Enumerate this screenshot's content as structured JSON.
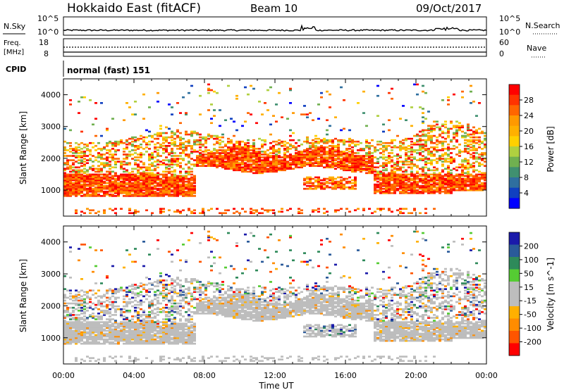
{
  "header": {
    "title": "Hokkaido East (fitACF)",
    "beam": "Beam 10",
    "date": "09/Oct/2017"
  },
  "panels": {
    "nsky_label": "N.Sky",
    "nsearch_label": "N.Search",
    "nsky_ticks": [
      "10^5",
      "10^0"
    ],
    "nsearch_ticks": [
      "10^5",
      "10^0"
    ],
    "freq_label_line1": "Freq.",
    "freq_label_line2": "[MHz]",
    "freq_ticks": [
      "18",
      "8"
    ],
    "nave_label": "Nave",
    "nave_ticks": [
      "60",
      "0"
    ],
    "cpid_label": "CPID",
    "cpid_text": "normal (fast) 151"
  },
  "colorbars": {
    "power": {
      "label": "Power [dB]",
      "ticks": [
        "28",
        "24",
        "20",
        "16",
        "12",
        "8",
        "4"
      ],
      "colors": [
        "#ff0000",
        "#ff3300",
        "#ff6600",
        "#ff9900",
        "#ffb000",
        "#ffd000",
        "#b0d040",
        "#70b050",
        "#409070",
        "#2f6f9f",
        "#1040c0",
        "#0000ff"
      ]
    },
    "velocity": {
      "label": "Velocity [m s^-1]",
      "ticks": [
        "200",
        "100",
        "50",
        "15",
        "-15",
        "-50",
        "-100",
        "-200"
      ],
      "colors": [
        "#1a1aaa",
        "#2a5a9a",
        "#2e8a5a",
        "#55cc33",
        "#bdbdbd",
        "#bdbdbd",
        "#ffb000",
        "#ff8c00",
        "#ff5500",
        "#ff0000"
      ]
    }
  },
  "axes": {
    "ylabel": "Slant Range [km]",
    "yticks": [
      "4000",
      "3000",
      "2000",
      "1000"
    ],
    "xlabel": "Time UT",
    "xticks": [
      "00:00",
      "04:00",
      "08:00",
      "12:00",
      "16:00",
      "20:00",
      "00:00"
    ]
  },
  "chart_data": [
    {
      "type": "heatmap",
      "name": "power",
      "xlabel": "Time UT",
      "ylabel": "Slant Range [km]",
      "xlim": [
        "00:00",
        "24:00"
      ],
      "ylim": [
        180,
        4500
      ],
      "zlabel": "Power [dB]",
      "zlim": [
        0,
        32
      ],
      "x_hours": [
        0,
        1,
        2,
        3,
        4,
        5,
        6,
        7,
        8,
        9,
        10,
        11,
        12,
        13,
        14,
        15,
        16,
        17,
        18,
        19,
        20,
        21,
        22,
        23,
        24
      ],
      "band_low_km": [
        1200,
        1180,
        1150,
        1150,
        1200,
        1250,
        1300,
        1500,
        1900,
        2000,
        2000,
        2050,
        2100,
        2000,
        2100,
        2100,
        2050,
        2000,
        2000,
        2000,
        1800,
        1500,
        1400,
        1300,
        1200
      ],
      "band_high_km": [
        2400,
        2350,
        2300,
        2400,
        2500,
        2600,
        2700,
        2700,
        2600,
        2500,
        2400,
        2400,
        2400,
        2400,
        2500,
        2500,
        2400,
        2400,
        2400,
        2400,
        2600,
        3000,
        3000,
        2900,
        2600
      ]
    },
    {
      "type": "heatmap",
      "name": "velocity",
      "xlabel": "Time UT",
      "ylabel": "Slant Range [km]",
      "xlim": [
        "00:00",
        "24:00"
      ],
      "ylim": [
        180,
        4500
      ],
      "zlabel": "Velocity [m s^-1]",
      "zlim": [
        -200,
        200
      ]
    }
  ]
}
